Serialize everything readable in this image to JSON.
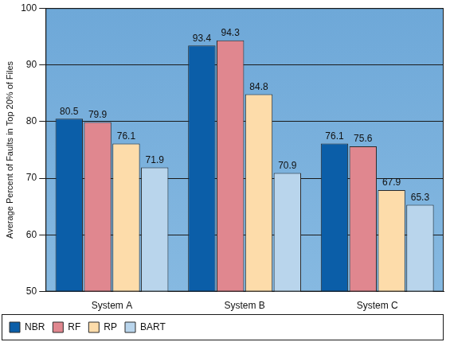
{
  "chart_data": {
    "type": "bar",
    "categories": [
      "System A",
      "System B",
      "System C"
    ],
    "series": [
      {
        "name": "NBR",
        "color": "#0b5ea8",
        "values": [
          80.5,
          93.4,
          76.1
        ]
      },
      {
        "name": "RF",
        "color": "#e0878f",
        "values": [
          79.9,
          94.3,
          75.6
        ]
      },
      {
        "name": "RP",
        "color": "#fddcaa",
        "values": [
          76.1,
          84.8,
          67.9
        ]
      },
      {
        "name": "BART",
        "color": "#b9d5ec",
        "values": [
          71.9,
          70.9,
          65.3
        ]
      }
    ],
    "ylabel": "Average Percent of Faults in Top 20% of Files",
    "ylim": [
      50,
      100
    ],
    "yticks": [
      50,
      60,
      70,
      80,
      90,
      100
    ],
    "grid": true,
    "legend": "bottom-left",
    "data_labels": true
  }
}
